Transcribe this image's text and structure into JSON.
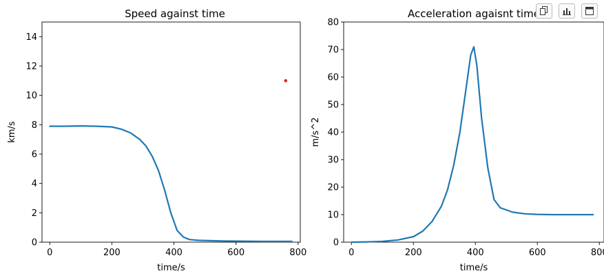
{
  "chart_data": [
    {
      "type": "line",
      "title": "Speed against time",
      "xlabel": "time/s",
      "ylabel": "km/s",
      "xlim": [
        -25,
        807
      ],
      "ylim": [
        0,
        15
      ],
      "xticks": [
        "0",
        "200",
        "400",
        "600",
        "800"
      ],
      "yticks": [
        "0",
        "2",
        "4",
        "6",
        "8",
        "10",
        "12",
        "14"
      ],
      "grid": false,
      "series": [
        {
          "color": "#1f77b4",
          "x": [
            0,
            50,
            100,
            150,
            200,
            230,
            260,
            290,
            310,
            330,
            350,
            370,
            390,
            410,
            430,
            450,
            480,
            520,
            560,
            600,
            650,
            700,
            780
          ],
          "y": [
            7.9,
            7.9,
            7.92,
            7.9,
            7.85,
            7.7,
            7.45,
            7.0,
            6.55,
            5.85,
            4.9,
            3.55,
            2.0,
            0.8,
            0.35,
            0.18,
            0.12,
            0.1,
            0.08,
            0.07,
            0.06,
            0.05,
            0.05
          ]
        }
      ],
      "points": [
        {
          "x": 760,
          "y": 11.0,
          "color": "#d62728"
        }
      ]
    },
    {
      "type": "line",
      "title": "Acceleration agaisnt time",
      "xlabel": "time/s",
      "ylabel": "m/s^2",
      "xlim": [
        -25,
        815
      ],
      "ylim": [
        0,
        80
      ],
      "xticks": [
        "0",
        "200",
        "400",
        "600",
        "800"
      ],
      "yticks": [
        "0",
        "10",
        "20",
        "30",
        "40",
        "50",
        "60",
        "70",
        "80"
      ],
      "grid": false,
      "series": [
        {
          "color": "#1f77b4",
          "x": [
            0,
            50,
            100,
            150,
            200,
            230,
            260,
            290,
            310,
            330,
            350,
            370,
            385,
            395,
            405,
            420,
            440,
            460,
            480,
            520,
            560,
            600,
            650,
            700,
            780
          ],
          "y": [
            0,
            0.1,
            0.3,
            0.8,
            2.0,
            4.0,
            7.5,
            13,
            19,
            28,
            40,
            56,
            68,
            71,
            64,
            45,
            27,
            15.5,
            12.5,
            10.9,
            10.3,
            10.1,
            10.0,
            10.0,
            10.0
          ]
        }
      ]
    }
  ],
  "toolbar": {
    "icons": [
      "copy-icon",
      "bar-chart-icon",
      "expand-icon"
    ]
  }
}
